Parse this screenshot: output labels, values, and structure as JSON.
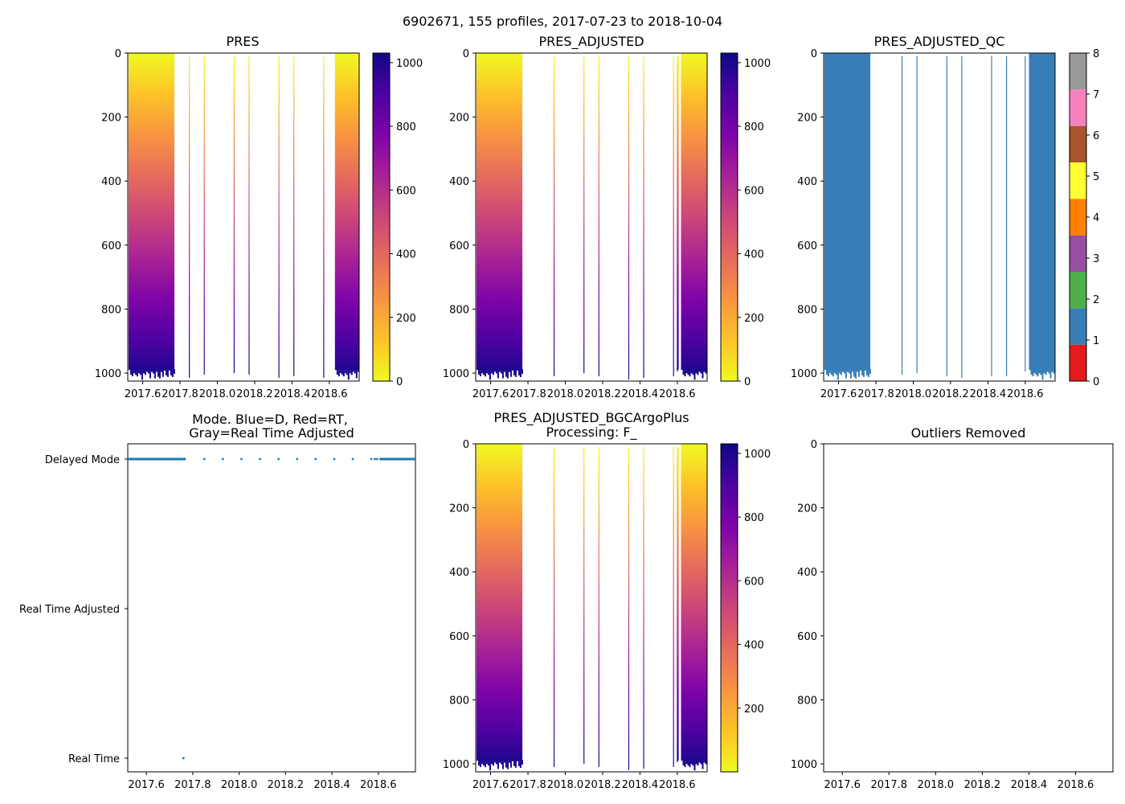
{
  "suptitle": "6902671, 155 profiles, 2017-07-23 to 2018-10-04",
  "chart_data": [
    {
      "id": "pres",
      "type": "heatmap",
      "title": "PRES",
      "colormap": "plasma_r",
      "xticks": [
        "2017.6",
        "2017.8",
        "2018.0",
        "2018.2",
        "2018.4",
        "2018.6"
      ],
      "xlim": [
        2017.52,
        2018.76
      ],
      "yticks": [
        "0",
        "200",
        "400",
        "600",
        "800",
        "1000"
      ],
      "ylim": [
        1025,
        0
      ],
      "colorbar": {
        "ticks": [
          "0",
          "200",
          "400",
          "600",
          "800",
          "1000"
        ],
        "range": [
          0,
          1030
        ]
      },
      "profile_blocks": [
        {
          "x_start": 2017.524,
          "x_end": 2017.77,
          "max_depth": 990
        },
        {
          "x_start": 2018.63,
          "x_end": 2018.758,
          "max_depth": 990
        }
      ],
      "profile_lines": [
        {
          "x": 2017.85,
          "max_depth": 1015
        },
        {
          "x": 2017.93,
          "max_depth": 1005
        },
        {
          "x": 2018.09,
          "max_depth": 1000
        },
        {
          "x": 2018.17,
          "max_depth": 1005
        },
        {
          "x": 2018.33,
          "max_depth": 1015
        },
        {
          "x": 2018.41,
          "max_depth": 1010
        },
        {
          "x": 2018.57,
          "max_depth": 1015
        }
      ]
    },
    {
      "id": "pres-adjusted",
      "type": "heatmap",
      "title": "PRES_ADJUSTED",
      "colormap": "plasma_r",
      "xticks": [
        "2017.6",
        "2017.8",
        "2018.0",
        "2018.2",
        "2018.4",
        "2018.6"
      ],
      "xlim": [
        2017.52,
        2018.76
      ],
      "yticks": [
        "0",
        "200",
        "400",
        "600",
        "800",
        "1000"
      ],
      "ylim": [
        1025,
        0
      ],
      "colorbar": {
        "ticks": [
          "0",
          "200",
          "400",
          "600",
          "800",
          "1000"
        ],
        "range": [
          0,
          1030
        ]
      },
      "profile_blocks": [
        {
          "x_start": 2017.524,
          "x_end": 2017.77,
          "max_depth": 990
        },
        {
          "x_start": 2018.62,
          "x_end": 2018.758,
          "max_depth": 990
        }
      ],
      "profile_lines": [
        {
          "x": 2017.94,
          "max_depth": 1010
        },
        {
          "x": 2018.1,
          "max_depth": 1000
        },
        {
          "x": 2018.18,
          "max_depth": 1010
        },
        {
          "x": 2018.34,
          "max_depth": 1020
        },
        {
          "x": 2018.42,
          "max_depth": 1015
        },
        {
          "x": 2018.58,
          "max_depth": 1010
        },
        {
          "x": 2018.6,
          "max_depth": 995
        },
        {
          "x": 2018.605,
          "max_depth": 990
        }
      ]
    },
    {
      "id": "pres-adjusted-qc",
      "type": "heatmap",
      "title": "PRES_ADJUSTED_QC",
      "colormap": "Set1 (discrete QC flags 0–8)",
      "xticks": [
        "2017.6",
        "2017.8",
        "2018.0",
        "2018.2",
        "2018.4",
        "2018.6"
      ],
      "xlim": [
        2017.52,
        2018.76
      ],
      "yticks": [
        "0",
        "200",
        "400",
        "600",
        "800",
        "1000"
      ],
      "ylim": [
        1025,
        0
      ],
      "qc_value_plotted": 1,
      "fill_color": "#377eb8",
      "colorbar": {
        "ticks": [
          "0",
          "1",
          "2",
          "3",
          "4",
          "5",
          "6",
          "7",
          "8"
        ],
        "colors": [
          "#e41a1c",
          "#377eb8",
          "#4daf4a",
          "#984ea3",
          "#ff7f00",
          "#ffff33",
          "#a65628",
          "#f781bf",
          "#999999"
        ]
      },
      "profile_blocks": [
        {
          "x_start": 2017.524,
          "x_end": 2017.77,
          "max_depth": 990
        },
        {
          "x_start": 2018.62,
          "x_end": 2018.758,
          "max_depth": 990
        }
      ],
      "profile_lines": [
        {
          "x": 2017.94,
          "max_depth": 1005
        },
        {
          "x": 2018.02,
          "max_depth": 1000
        },
        {
          "x": 2018.18,
          "max_depth": 1010
        },
        {
          "x": 2018.26,
          "max_depth": 1015
        },
        {
          "x": 2018.42,
          "max_depth": 1010
        },
        {
          "x": 2018.5,
          "max_depth": 1010
        },
        {
          "x": 2018.6,
          "max_depth": 995
        }
      ]
    },
    {
      "id": "mode",
      "type": "scatter",
      "title": "Mode. Blue=D, Red=RT,",
      "title_line2": "Gray=Real Time Adjusted",
      "xticks": [
        "2017.6",
        "2017.8",
        "2018.0",
        "2018.2",
        "2018.4",
        "2018.6"
      ],
      "xlim": [
        2017.52,
        2018.76
      ],
      "categories": [
        "Delayed Mode",
        "Real Time Adjusted",
        "Real Time"
      ],
      "marker_color": "#1f77b4",
      "dense_segments": [
        {
          "mode": "Delayed Mode",
          "x_start": 2017.52,
          "x_end": 2017.77
        },
        {
          "mode": "Delayed Mode",
          "x_start": 2018.605,
          "x_end": 2018.76
        }
      ],
      "points": [
        {
          "mode": "Delayed Mode",
          "x": 2017.85
        },
        {
          "mode": "Delayed Mode",
          "x": 2017.93
        },
        {
          "mode": "Delayed Mode",
          "x": 2018.01
        },
        {
          "mode": "Delayed Mode",
          "x": 2018.09
        },
        {
          "mode": "Delayed Mode",
          "x": 2018.17
        },
        {
          "mode": "Delayed Mode",
          "x": 2018.25
        },
        {
          "mode": "Delayed Mode",
          "x": 2018.33
        },
        {
          "mode": "Delayed Mode",
          "x": 2018.41
        },
        {
          "mode": "Delayed Mode",
          "x": 2018.49
        },
        {
          "mode": "Delayed Mode",
          "x": 2018.57
        },
        {
          "mode": "Delayed Mode",
          "x": 2018.585
        },
        {
          "mode": "Delayed Mode",
          "x": 2018.595
        },
        {
          "mode": "Real Time",
          "x": 2017.76
        }
      ]
    },
    {
      "id": "pres-adjusted-bgc",
      "type": "heatmap",
      "title": "PRES_ADJUSTED_BGCArgoPlus",
      "title_line2": "Processing: F_",
      "colormap": "plasma_r",
      "xticks": [
        "2017.6",
        "2017.8",
        "2018.0",
        "2018.2",
        "2018.4",
        "2018.6"
      ],
      "xlim": [
        2017.52,
        2018.76
      ],
      "yticks": [
        "0",
        "200",
        "400",
        "600",
        "800",
        "1000"
      ],
      "ylim": [
        1025,
        0
      ],
      "colorbar": {
        "ticks": [
          "200",
          "400",
          "600",
          "800",
          "1000"
        ],
        "range": [
          0,
          1030
        ]
      },
      "profile_blocks": [
        {
          "x_start": 2017.524,
          "x_end": 2017.77,
          "max_depth": 990
        },
        {
          "x_start": 2018.62,
          "x_end": 2018.758,
          "max_depth": 990
        }
      ],
      "profile_lines": [
        {
          "x": 2017.94,
          "max_depth": 1010
        },
        {
          "x": 2018.1,
          "max_depth": 1000
        },
        {
          "x": 2018.18,
          "max_depth": 1010
        },
        {
          "x": 2018.34,
          "max_depth": 1020
        },
        {
          "x": 2018.42,
          "max_depth": 1015
        },
        {
          "x": 2018.58,
          "max_depth": 1010
        },
        {
          "x": 2018.6,
          "max_depth": 995
        },
        {
          "x": 2018.605,
          "max_depth": 990
        }
      ]
    },
    {
      "id": "outliers",
      "type": "scatter",
      "title": "Outliers Removed",
      "xticks": [
        "2017.6",
        "2017.8",
        "2018.0",
        "2018.2",
        "2018.4",
        "2018.6"
      ],
      "xlim": [
        2017.52,
        2018.76
      ],
      "yticks": [
        "0",
        "200",
        "400",
        "600",
        "800",
        "1000"
      ],
      "ylim": [
        1025,
        0
      ],
      "points": []
    }
  ]
}
